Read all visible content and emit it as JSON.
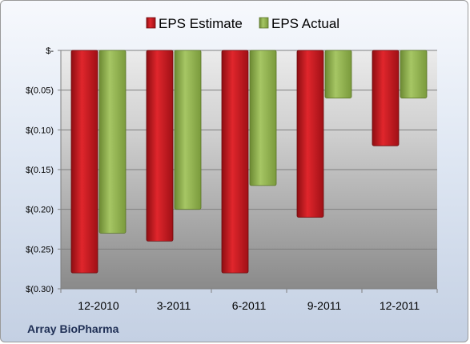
{
  "chart_data": {
    "type": "bar",
    "categories": [
      "12-2010",
      "3-2011",
      "6-2011",
      "9-2011",
      "12-2011"
    ],
    "series": [
      {
        "name": "EPS Estimate",
        "color": "#c0151b",
        "values": [
          -0.28,
          -0.24,
          -0.28,
          -0.21,
          -0.12
        ]
      },
      {
        "name": "EPS Actual",
        "color": "#8fb04a",
        "values": [
          -0.23,
          -0.2,
          -0.17,
          -0.06,
          -0.06
        ]
      }
    ],
    "ylim": [
      -0.3,
      0
    ],
    "yticks": [
      0,
      -0.05,
      -0.1,
      -0.15,
      -0.2,
      -0.25,
      -0.3
    ],
    "ytick_labels": [
      "$-",
      "$(0.05)",
      "$(0.10)",
      "$(0.15)",
      "$(0.20)",
      "$(0.25)",
      "$(0.30)"
    ],
    "grid": true,
    "legend_position": "top"
  },
  "footer": {
    "company": "Array BioPharma"
  }
}
